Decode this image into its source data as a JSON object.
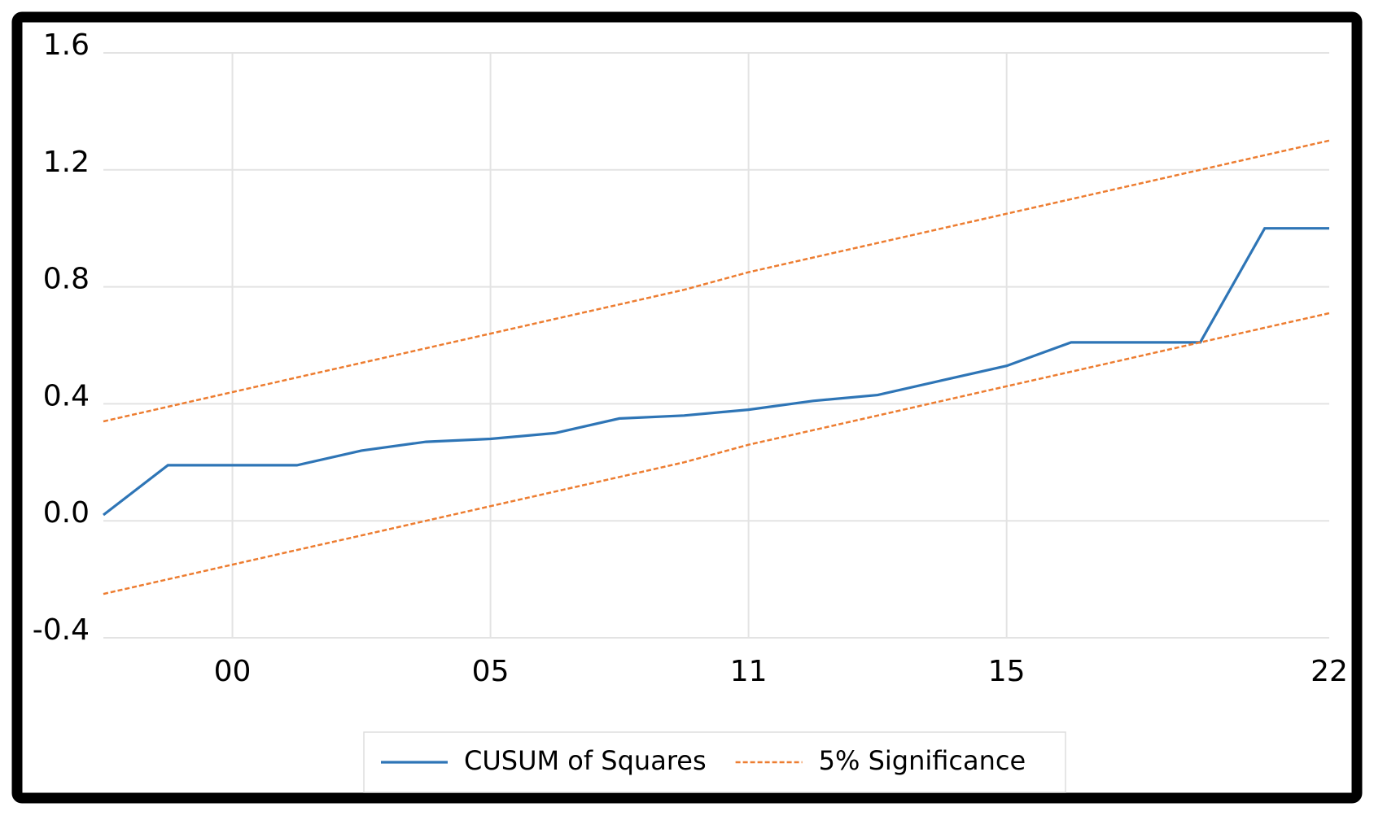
{
  "chart_data": {
    "type": "line",
    "categories": [
      null,
      null,
      "00",
      null,
      null,
      null,
      "05",
      null,
      null,
      null,
      "11",
      null,
      null,
      null,
      "15",
      null,
      null,
      null,
      null,
      "22"
    ],
    "series": [
      {
        "name": "CUSUM of Squares",
        "color": "#2e75b6",
        "values": [
          0.02,
          0.19,
          0.19,
          0.19,
          0.24,
          0.27,
          0.28,
          0.3,
          0.35,
          0.36,
          0.38,
          0.41,
          0.43,
          0.48,
          0.53,
          0.61,
          0.61,
          0.61,
          1.0,
          1.0
        ]
      },
      {
        "name": "5% Significance",
        "color": "#ed7d31",
        "dashed": true,
        "upper": [
          0.34,
          0.39,
          0.44,
          0.49,
          0.54,
          0.59,
          0.64,
          0.69,
          0.74,
          0.79,
          0.85,
          0.9,
          0.95,
          1.0,
          1.05,
          1.1,
          1.15,
          1.2,
          1.25,
          1.3
        ],
        "lower": [
          -0.25,
          -0.2,
          -0.15,
          -0.1,
          -0.05,
          0.0,
          0.05,
          0.1,
          0.15,
          0.2,
          0.26,
          0.31,
          0.36,
          0.41,
          0.46,
          0.51,
          0.56,
          0.61,
          0.66,
          0.71
        ]
      }
    ],
    "ylim": [
      -0.4,
      1.6
    ],
    "yticks": [
      -0.4,
      {
        "value": 0,
        "label": "0.0"
      },
      0.4,
      0.8,
      1.2,
      1.6
    ],
    "grid": true
  }
}
